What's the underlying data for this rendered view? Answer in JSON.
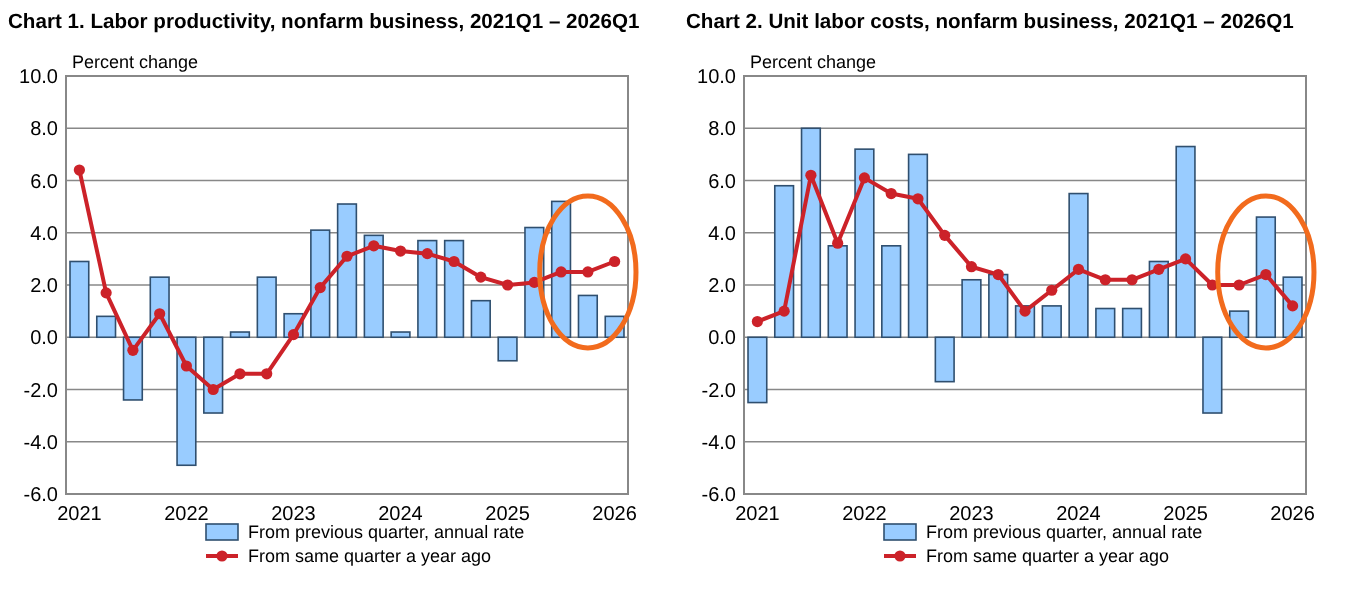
{
  "chart_data": [
    {
      "type": "bar",
      "title": "Chart 1. Labor productivity, nonfarm business, 2021Q1 – 2026Q1",
      "ylabel": "Percent change",
      "categories": [
        "2021",
        null,
        null,
        null,
        "2022",
        null,
        null,
        null,
        "2023",
        null,
        null,
        null,
        "2024",
        null,
        null,
        null,
        "2025",
        null,
        null,
        null,
        "2026"
      ],
      "series": [
        {
          "name": "From previous quarter, annual rate",
          "color": "#99ccff",
          "values": [
            2.9,
            0.8,
            -2.4,
            2.3,
            -4.9,
            -2.9,
            0.2,
            2.3,
            0.9,
            4.1,
            5.1,
            3.9,
            0.2,
            3.7,
            3.7,
            1.4,
            -0.9,
            4.2,
            5.2,
            1.6,
            0.8
          ]
        },
        {
          "name": "From same quarter a year ago",
          "type": "line",
          "color": "#cc2229",
          "values": [
            6.4,
            1.7,
            -0.5,
            0.9,
            -1.1,
            -2.0,
            -1.4,
            -1.4,
            0.1,
            1.9,
            3.1,
            3.5,
            3.3,
            3.2,
            2.9,
            2.3,
            2.0,
            2.1,
            2.5,
            2.5,
            2.9
          ]
        }
      ],
      "ylim": [
        -6,
        10
      ],
      "yticks": [
        {
          "value": -6,
          "label": "-6.0"
        },
        {
          "value": -4,
          "label": "-4.0"
        },
        {
          "value": -2,
          "label": "-2.0"
        },
        {
          "value": 0,
          "label": "0.0"
        },
        {
          "value": 2,
          "label": "2.0"
        },
        {
          "value": 4,
          "label": "4.0"
        },
        {
          "value": 6,
          "label": "6.0"
        },
        {
          "value": 8,
          "label": "8.0"
        },
        {
          "value": 10,
          "label": "10.0"
        }
      ],
      "grid": "y",
      "legend": "bottom",
      "marker": "circle"
    },
    {
      "type": "bar",
      "title": "Chart 2. Unit labor costs, nonfarm business, 2021Q1 – 2026Q1",
      "ylabel": "Percent change",
      "categories": [
        "2021",
        null,
        null,
        null,
        "2022",
        null,
        null,
        null,
        "2023",
        null,
        null,
        null,
        "2024",
        null,
        null,
        null,
        "2025",
        null,
        null,
        null,
        "2026"
      ],
      "series": [
        {
          "name": "From previous quarter, annual rate",
          "color": "#99ccff",
          "values": [
            -2.5,
            5.8,
            8.0,
            3.5,
            7.2,
            3.5,
            7.0,
            -1.7,
            2.2,
            2.4,
            1.2,
            1.2,
            5.5,
            1.1,
            1.1,
            2.9,
            7.3,
            -2.9,
            1.0,
            4.6,
            2.3
          ]
        },
        {
          "name": "From same quarter a year ago",
          "type": "line",
          "color": "#cc2229",
          "values": [
            0.6,
            1.0,
            6.2,
            3.6,
            6.1,
            5.5,
            5.3,
            3.9,
            2.7,
            2.4,
            1.0,
            1.8,
            2.6,
            2.2,
            2.2,
            2.6,
            3.0,
            2.0,
            2.0,
            2.4,
            1.2
          ]
        }
      ],
      "ylim": [
        -6,
        10
      ],
      "yticks": [
        {
          "value": -6,
          "label": "-6.0"
        },
        {
          "value": -4,
          "label": "-4.0"
        },
        {
          "value": -2,
          "label": "-2.0"
        },
        {
          "value": 0,
          "label": "0.0"
        },
        {
          "value": 2,
          "label": "2.0"
        },
        {
          "value": 4,
          "label": "4.0"
        },
        {
          "value": 6,
          "label": "6.0"
        },
        {
          "value": 8,
          "label": "8.0"
        },
        {
          "value": 10,
          "label": "10.0"
        }
      ],
      "grid": "y",
      "legend": "bottom",
      "marker": "circle"
    }
  ]
}
